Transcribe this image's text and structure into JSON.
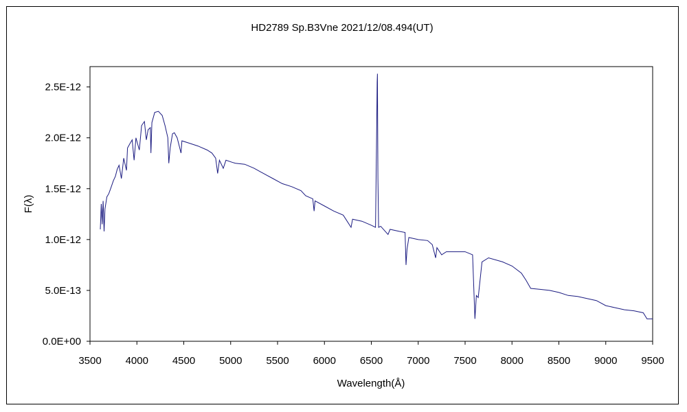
{
  "chart_data": {
    "type": "line",
    "title": "HD2789  Sp.B3Vne   2021/12/08.494(UT)",
    "xlabel": "Wavelength(Å)",
    "ylabel": "F(λ)",
    "xlim": [
      3500,
      9500
    ],
    "ylim": [
      0,
      2.7e-12
    ],
    "grid": false,
    "x_ticks": [
      3500,
      4000,
      4500,
      5000,
      5500,
      6000,
      6500,
      7000,
      7500,
      8000,
      8500,
      9000,
      9500
    ],
    "y_ticks": [
      0,
      5e-13,
      1e-12,
      1.5e-12,
      2e-12,
      2.5e-12
    ],
    "x_tick_labels": [
      "3500",
      "4000",
      "4500",
      "5000",
      "5500",
      "6000",
      "6500",
      "7000",
      "7500",
      "8000",
      "8500",
      "9000",
      "9500"
    ],
    "y_tick_labels": [
      "0.0E+00",
      "5.0E-13",
      "1.0E-12",
      "1.5E-12",
      "2.0E-12",
      "2.5E-12"
    ],
    "line_color": "#1a1a80",
    "series": [
      {
        "points": [
          [
            3610,
            1.1e-12
          ],
          [
            3620,
            1.35e-12
          ],
          [
            3630,
            1.15e-12
          ],
          [
            3640,
            1.38e-12
          ],
          [
            3650,
            1.08e-12
          ],
          [
            3660,
            1.3e-12
          ],
          [
            3680,
            1.42e-12
          ],
          [
            3700,
            1.45e-12
          ],
          [
            3720,
            1.5e-12
          ],
          [
            3750,
            1.58e-12
          ],
          [
            3770,
            1.62e-12
          ],
          [
            3790,
            1.69e-12
          ],
          [
            3810,
            1.73e-12
          ],
          [
            3835,
            1.6e-12
          ],
          [
            3860,
            1.8e-12
          ],
          [
            3889,
            1.68e-12
          ],
          [
            3900,
            1.9e-12
          ],
          [
            3930,
            1.95e-12
          ],
          [
            3950,
            1.98e-12
          ],
          [
            3970,
            1.78e-12
          ],
          [
            3990,
            2e-12
          ],
          [
            4026,
            1.88e-12
          ],
          [
            4050,
            2.12e-12
          ],
          [
            4080,
            2.16e-12
          ],
          [
            4101,
            1.98e-12
          ],
          [
            4120,
            2.08e-12
          ],
          [
            4143,
            2.1e-12
          ],
          [
            4150,
            1.85e-12
          ],
          [
            4160,
            2.15e-12
          ],
          [
            4190,
            2.25e-12
          ],
          [
            4230,
            2.26e-12
          ],
          [
            4270,
            2.22e-12
          ],
          [
            4300,
            2.12e-12
          ],
          [
            4330,
            2e-12
          ],
          [
            4340,
            1.75e-12
          ],
          [
            4355,
            1.9e-12
          ],
          [
            4380,
            2.04e-12
          ],
          [
            4400,
            2.05e-12
          ],
          [
            4430,
            2e-12
          ],
          [
            4471,
            1.85e-12
          ],
          [
            4480,
            1.97e-12
          ],
          [
            4550,
            1.95e-12
          ],
          [
            4650,
            1.92e-12
          ],
          [
            4750,
            1.88e-12
          ],
          [
            4800,
            1.85e-12
          ],
          [
            4840,
            1.8e-12
          ],
          [
            4861,
            1.65e-12
          ],
          [
            4880,
            1.78e-12
          ],
          [
            4921,
            1.7e-12
          ],
          [
            4950,
            1.78e-12
          ],
          [
            5015,
            1.76e-12
          ],
          [
            5050,
            1.75e-12
          ],
          [
            5150,
            1.74e-12
          ],
          [
            5250,
            1.7e-12
          ],
          [
            5350,
            1.65e-12
          ],
          [
            5450,
            1.6e-12
          ],
          [
            5550,
            1.55e-12
          ],
          [
            5650,
            1.52e-12
          ],
          [
            5750,
            1.48e-12
          ],
          [
            5800,
            1.43e-12
          ],
          [
            5876,
            1.4e-12
          ],
          [
            5890,
            1.28e-12
          ],
          [
            5900,
            1.38e-12
          ],
          [
            6000,
            1.33e-12
          ],
          [
            6100,
            1.28e-12
          ],
          [
            6200,
            1.24e-12
          ],
          [
            6284,
            1.12e-12
          ],
          [
            6300,
            1.2e-12
          ],
          [
            6400,
            1.18e-12
          ],
          [
            6500,
            1.14e-12
          ],
          [
            6545,
            1.12e-12
          ],
          [
            6555,
            1.9e-12
          ],
          [
            6562,
            2.55e-12
          ],
          [
            6565,
            2.63e-12
          ],
          [
            6570,
            1.6e-12
          ],
          [
            6578,
            1.12e-12
          ],
          [
            6600,
            1.13e-12
          ],
          [
            6678,
            1.05e-12
          ],
          [
            6700,
            1.1e-12
          ],
          [
            6800,
            1.08e-12
          ],
          [
            6860,
            1.07e-12
          ],
          [
            6870,
            7.5e-13
          ],
          [
            6880,
            9e-13
          ],
          [
            6900,
            1.02e-12
          ],
          [
            7000,
            1e-12
          ],
          [
            7100,
            9.9e-13
          ],
          [
            7150,
            9.5e-13
          ],
          [
            7186,
            8.2e-13
          ],
          [
            7200,
            9.2e-13
          ],
          [
            7250,
            8.5e-13
          ],
          [
            7300,
            8.8e-13
          ],
          [
            7400,
            8.8e-13
          ],
          [
            7500,
            8.8e-13
          ],
          [
            7580,
            8.5e-13
          ],
          [
            7600,
            3.5e-13
          ],
          [
            7605,
            2.2e-13
          ],
          [
            7620,
            4.5e-13
          ],
          [
            7640,
            4.3e-13
          ],
          [
            7680,
            7.8e-13
          ],
          [
            7750,
            8.2e-13
          ],
          [
            7900,
            7.8e-13
          ],
          [
            8000,
            7.4e-13
          ],
          [
            8100,
            6.7e-13
          ],
          [
            8150,
            6e-13
          ],
          [
            8200,
            5.2e-13
          ],
          [
            8300,
            5.1e-13
          ],
          [
            8400,
            5e-13
          ],
          [
            8500,
            4.8e-13
          ],
          [
            8600,
            4.5e-13
          ],
          [
            8700,
            4.4e-13
          ],
          [
            8800,
            4.2e-13
          ],
          [
            8900,
            4e-13
          ],
          [
            9000,
            3.5e-13
          ],
          [
            9100,
            3.3e-13
          ],
          [
            9200,
            3.1e-13
          ],
          [
            9300,
            3e-13
          ],
          [
            9400,
            2.8e-13
          ],
          [
            9440,
            2.2e-13
          ],
          [
            9500,
            2.2e-13
          ]
        ]
      }
    ]
  }
}
